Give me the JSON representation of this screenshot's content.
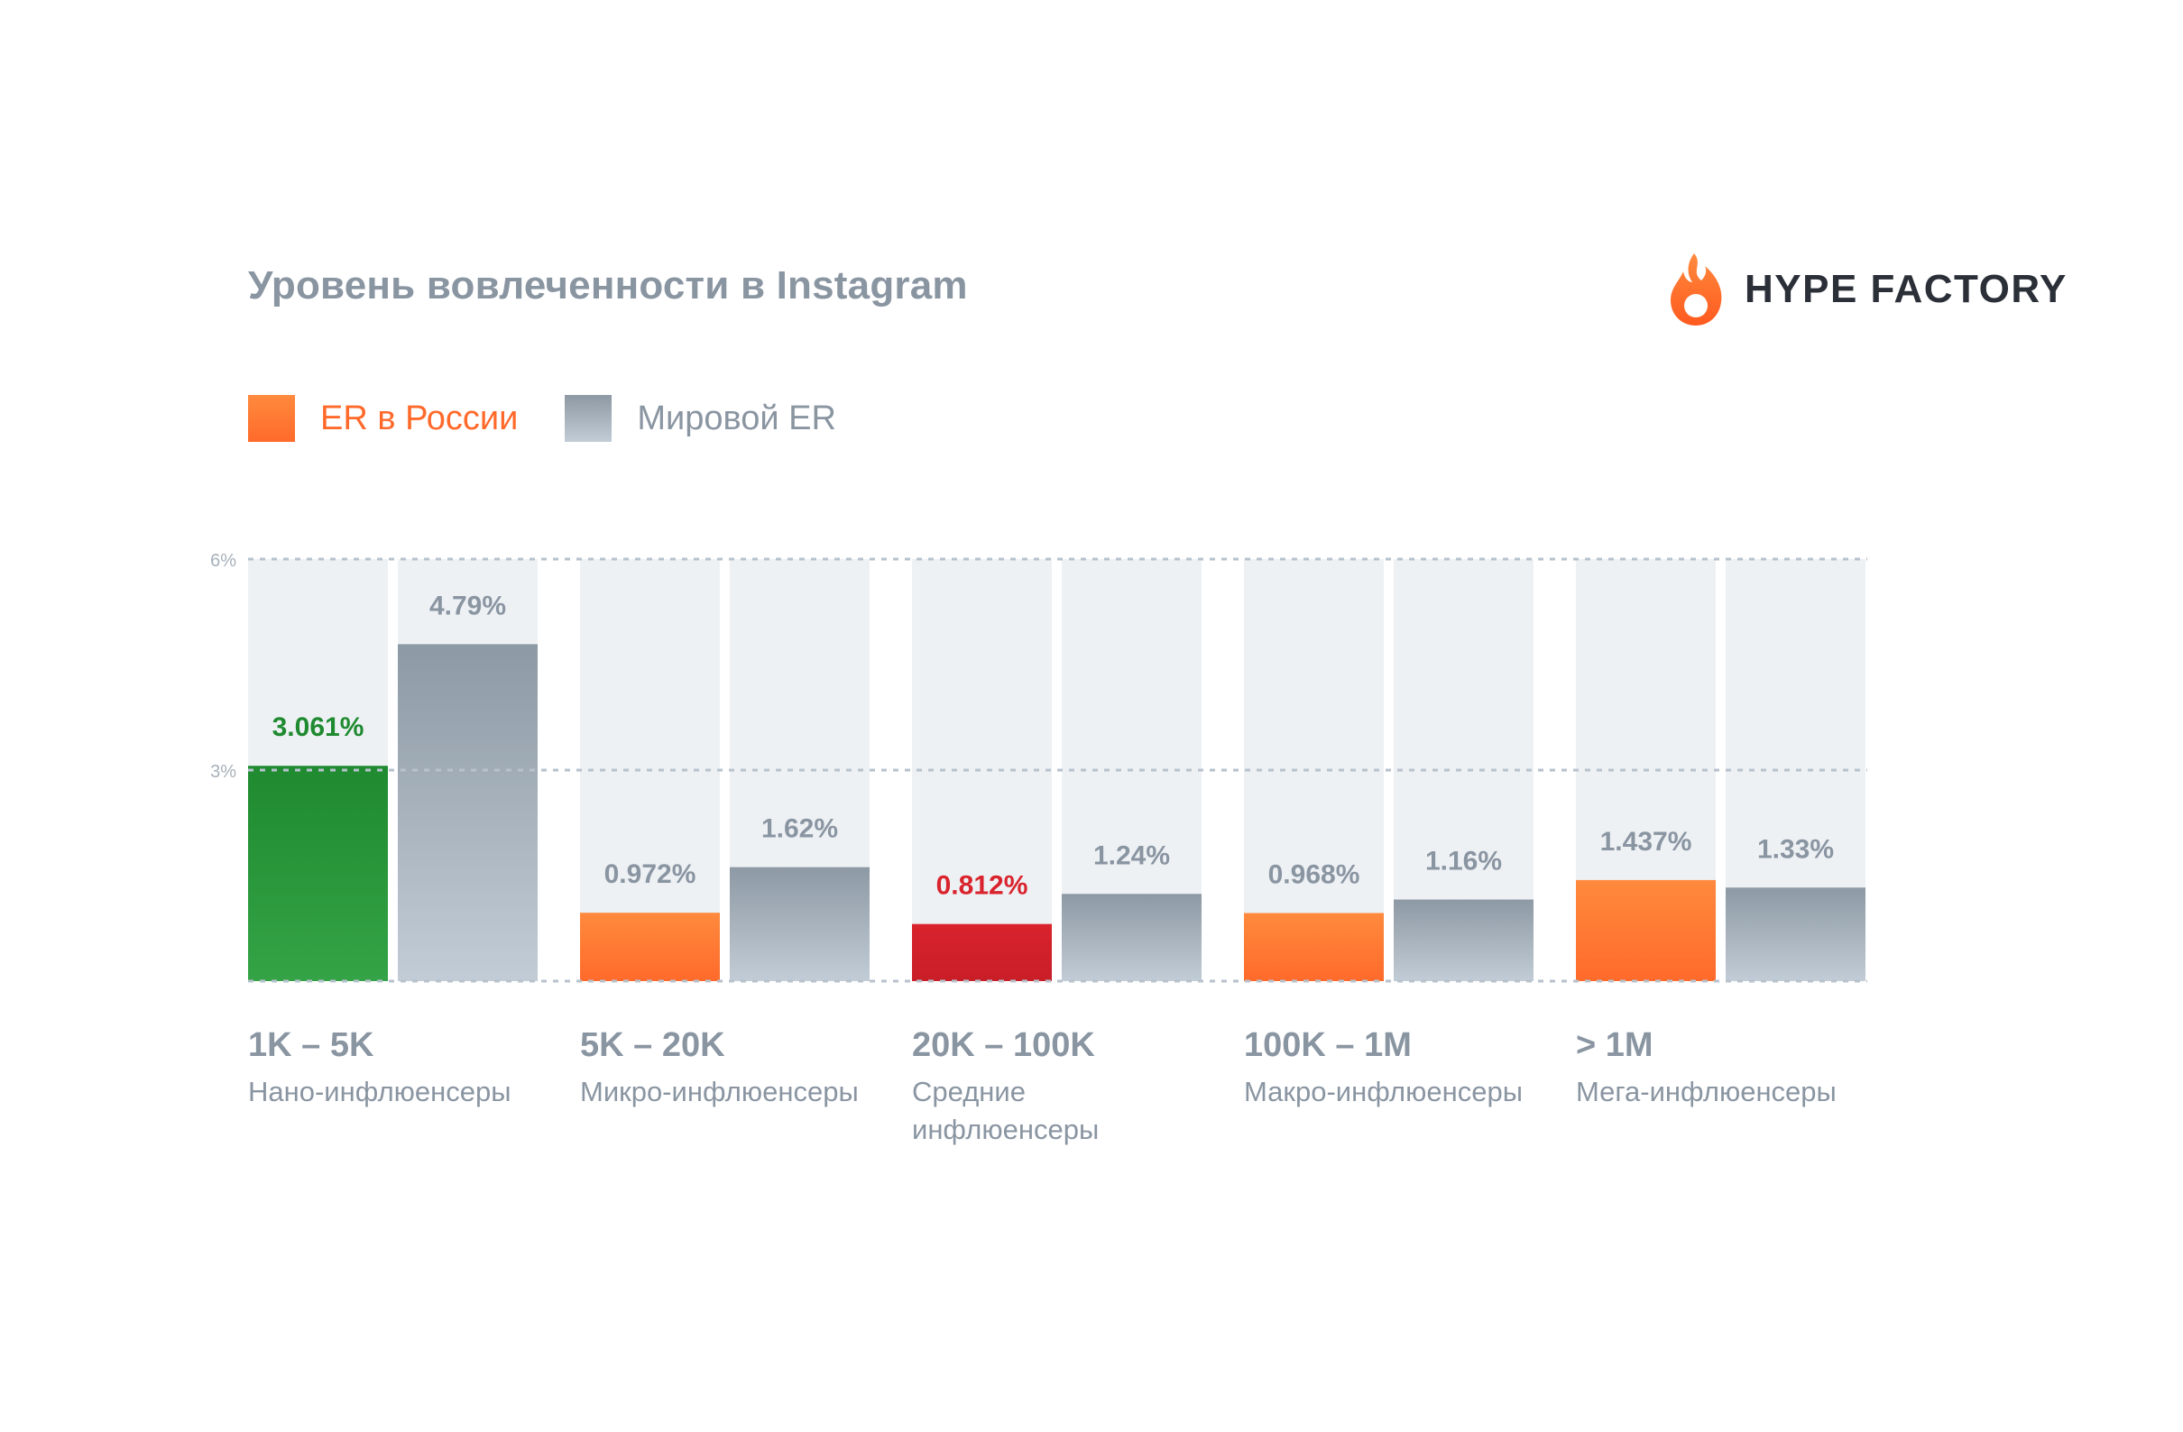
{
  "header": {
    "title": "Уровень вовлеченности в Instagram",
    "brand": "HYPE FACTORY"
  },
  "legend": {
    "russia_label": "ER в России",
    "world_label": "Мировой ER"
  },
  "colors": {
    "russia": "#ff6a2b",
    "world": "#8d99a4",
    "highlight_high": "#1f8a30",
    "highlight_low": "#d9232d",
    "track": "#eef1f4",
    "text": "#8a95a2"
  },
  "chart_data": {
    "type": "bar",
    "title": "Уровень вовлеченности в Instagram",
    "ylim": [
      0,
      6
    ],
    "yticks": [
      "6%",
      "3%"
    ],
    "grid": true,
    "legend_position": "top-left",
    "categories": [
      {
        "range": "1K – 5K",
        "name": "Нано-инфлюенсеры"
      },
      {
        "range": "5K – 20K",
        "name": "Микро-инфлюенсеры"
      },
      {
        "range": "20K – 100K",
        "name": "Средние инфлюенсеры"
      },
      {
        "range": "100K – 1M",
        "name": "Макро-инфлюенсеры"
      },
      {
        "range": "> 1M",
        "name": "Мега-инфлюенсеры"
      }
    ],
    "series": [
      {
        "name": "ER в России",
        "values": [
          3.061,
          0.972,
          0.812,
          0.968,
          1.437
        ],
        "labels": [
          "3.061%",
          "0.972%",
          "0.812%",
          "0.968%",
          "1.437%"
        ],
        "highlights": [
          "high",
          "",
          "low",
          "",
          ""
        ]
      },
      {
        "name": "Мировой ER",
        "values": [
          4.79,
          1.62,
          1.24,
          1.16,
          1.33
        ],
        "labels": [
          "4.79%",
          "1.62%",
          "1.24%",
          "1.16%",
          "1.33%"
        ]
      }
    ]
  }
}
